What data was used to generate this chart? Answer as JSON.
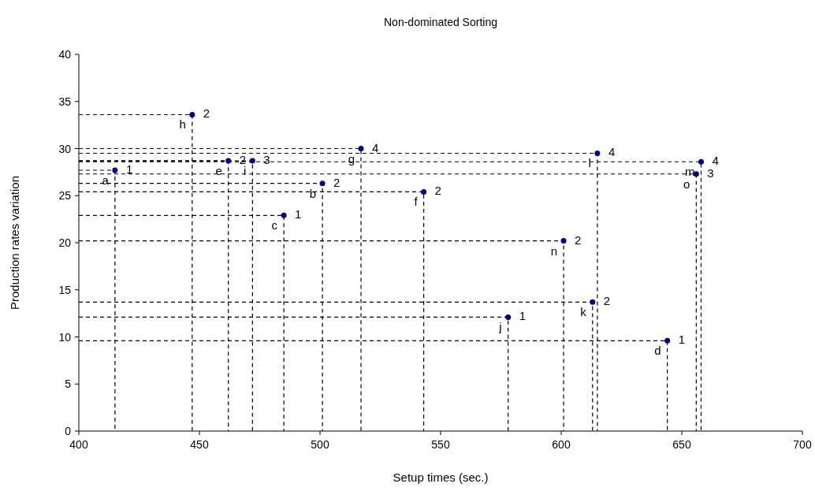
{
  "chart_data": {
    "type": "scatter",
    "title": "Non-dominated Sorting",
    "xlabel": "Setup times (sec.)",
    "ylabel": "Production rates variation",
    "x": [
      415,
      447,
      462,
      472,
      517,
      501,
      543,
      485,
      601,
      578,
      613,
      644,
      615,
      658,
      656
    ],
    "series": [
      {
        "type": "line",
        "color": "#000000",
        "line_style": "dashed",
        "marker": "none",
        "x": [
          400,
          415,
          415
        ],
        "values": [
          27.7,
          27.7,
          0
        ]
      },
      {
        "type": "line",
        "color": "#000000",
        "line_style": "dashed",
        "marker": "none",
        "x": [
          400,
          447,
          447
        ],
        "values": [
          33.6,
          33.6,
          0
        ]
      },
      {
        "type": "line",
        "color": "#000000",
        "line_style": "dashed",
        "marker": "none",
        "x": [
          400,
          462,
          462
        ],
        "values": [
          28.7,
          28.7,
          0
        ]
      },
      {
        "type": "line",
        "color": "#000000",
        "line_style": "dashed",
        "marker": "none",
        "x": [
          400,
          472,
          472
        ],
        "values": [
          28.7,
          28.7,
          0
        ]
      },
      {
        "type": "line",
        "color": "#000000",
        "line_style": "dashed",
        "marker": "none",
        "x": [
          400,
          517,
          517
        ],
        "values": [
          30.0,
          30.0,
          0
        ]
      },
      {
        "type": "line",
        "color": "#000000",
        "line_style": "dashed",
        "marker": "none",
        "x": [
          400,
          501,
          501
        ],
        "values": [
          26.3,
          26.3,
          0
        ]
      },
      {
        "type": "line",
        "color": "#000000",
        "line_style": "dashed",
        "marker": "none",
        "x": [
          400,
          543,
          543
        ],
        "values": [
          25.4,
          25.4,
          0
        ]
      },
      {
        "type": "line",
        "color": "#000000",
        "line_style": "dashed",
        "marker": "none",
        "x": [
          400,
          485,
          485
        ],
        "values": [
          22.9,
          22.9,
          0
        ]
      },
      {
        "type": "line",
        "color": "#000000",
        "line_style": "dashed",
        "marker": "none",
        "x": [
          400,
          601,
          601
        ],
        "values": [
          20.2,
          20.2,
          0
        ]
      },
      {
        "type": "line",
        "color": "#000000",
        "line_style": "dashed",
        "marker": "none",
        "x": [
          400,
          578,
          578
        ],
        "values": [
          12.1,
          12.1,
          0
        ]
      },
      {
        "type": "line",
        "color": "#000000",
        "line_style": "dashed",
        "marker": "none",
        "x": [
          400,
          613,
          613
        ],
        "values": [
          13.7,
          13.7,
          0
        ]
      },
      {
        "type": "line",
        "color": "#000000",
        "line_style": "dashed",
        "marker": "none",
        "x": [
          400,
          644,
          644
        ],
        "values": [
          9.6,
          9.6,
          0
        ]
      },
      {
        "type": "line",
        "color": "#000000",
        "line_style": "dashed",
        "marker": "none",
        "x": [
          400,
          615,
          615
        ],
        "values": [
          29.5,
          29.5,
          0
        ]
      },
      {
        "type": "line",
        "color": "#000000",
        "line_style": "dashed",
        "marker": "none",
        "x": [
          400,
          658,
          658
        ],
        "values": [
          28.6,
          28.6,
          0
        ]
      },
      {
        "type": "line",
        "color": "#000000",
        "line_style": "dashed",
        "marker": "none",
        "x": [
          400,
          656,
          656
        ],
        "values": [
          27.3,
          27.3,
          0
        ]
      },
      {
        "color": "#000080",
        "values": [
          27.7,
          33.6,
          28.7,
          28.7,
          30.0,
          26.3,
          25.4,
          22.9,
          20.2,
          12.1,
          13.7,
          9.6,
          29.5,
          28.6,
          27.3
        ]
      }
    ],
    "xlim": [
      400,
      700
    ],
    "xticks": [
      400,
      450,
      500,
      550,
      600,
      650,
      700
    ],
    "ylim": [
      0,
      40
    ],
    "yticks": [
      0,
      5,
      10,
      15,
      20,
      25,
      30,
      35,
      40
    ],
    "marker": "circle",
    "annotations": [
      {
        "text": "a",
        "x": 415,
        "y": 27.7
      },
      {
        "text": "1",
        "x": 415,
        "y": 27.7
      },
      {
        "text": "h",
        "x": 447,
        "y": 33.6
      },
      {
        "text": "2",
        "x": 447,
        "y": 33.6
      },
      {
        "text": "e",
        "x": 462,
        "y": 28.7
      },
      {
        "text": "2",
        "x": 462,
        "y": 28.7
      },
      {
        "text": "i",
        "x": 472,
        "y": 28.7
      },
      {
        "text": "3",
        "x": 472,
        "y": 28.7
      },
      {
        "text": "g",
        "x": 517,
        "y": 30.0
      },
      {
        "text": "4",
        "x": 517,
        "y": 30.0
      },
      {
        "text": "b",
        "x": 501,
        "y": 26.3
      },
      {
        "text": "2",
        "x": 501,
        "y": 26.3
      },
      {
        "text": "f",
        "x": 543,
        "y": 25.4
      },
      {
        "text": "2",
        "x": 543,
        "y": 25.4
      },
      {
        "text": "c",
        "x": 485,
        "y": 22.9
      },
      {
        "text": "1",
        "x": 485,
        "y": 22.9
      },
      {
        "text": "n",
        "x": 601,
        "y": 20.2
      },
      {
        "text": "2",
        "x": 601,
        "y": 20.2
      },
      {
        "text": "j",
        "x": 578,
        "y": 12.1
      },
      {
        "text": "1",
        "x": 578,
        "y": 12.1
      },
      {
        "text": "k",
        "x": 613,
        "y": 13.7
      },
      {
        "text": "2",
        "x": 613,
        "y": 13.7
      },
      {
        "text": "d",
        "x": 644,
        "y": 9.6
      },
      {
        "text": "1",
        "x": 644,
        "y": 9.6
      },
      {
        "text": "l",
        "x": 615,
        "y": 29.5
      },
      {
        "text": "4",
        "x": 615,
        "y": 29.5
      },
      {
        "text": "m",
        "x": 658,
        "y": 28.6
      },
      {
        "text": "4",
        "x": 658,
        "y": 28.6
      },
      {
        "text": "o",
        "x": 656,
        "y": 27.3
      },
      {
        "text": "3",
        "x": 656,
        "y": 27.3
      }
    ]
  }
}
